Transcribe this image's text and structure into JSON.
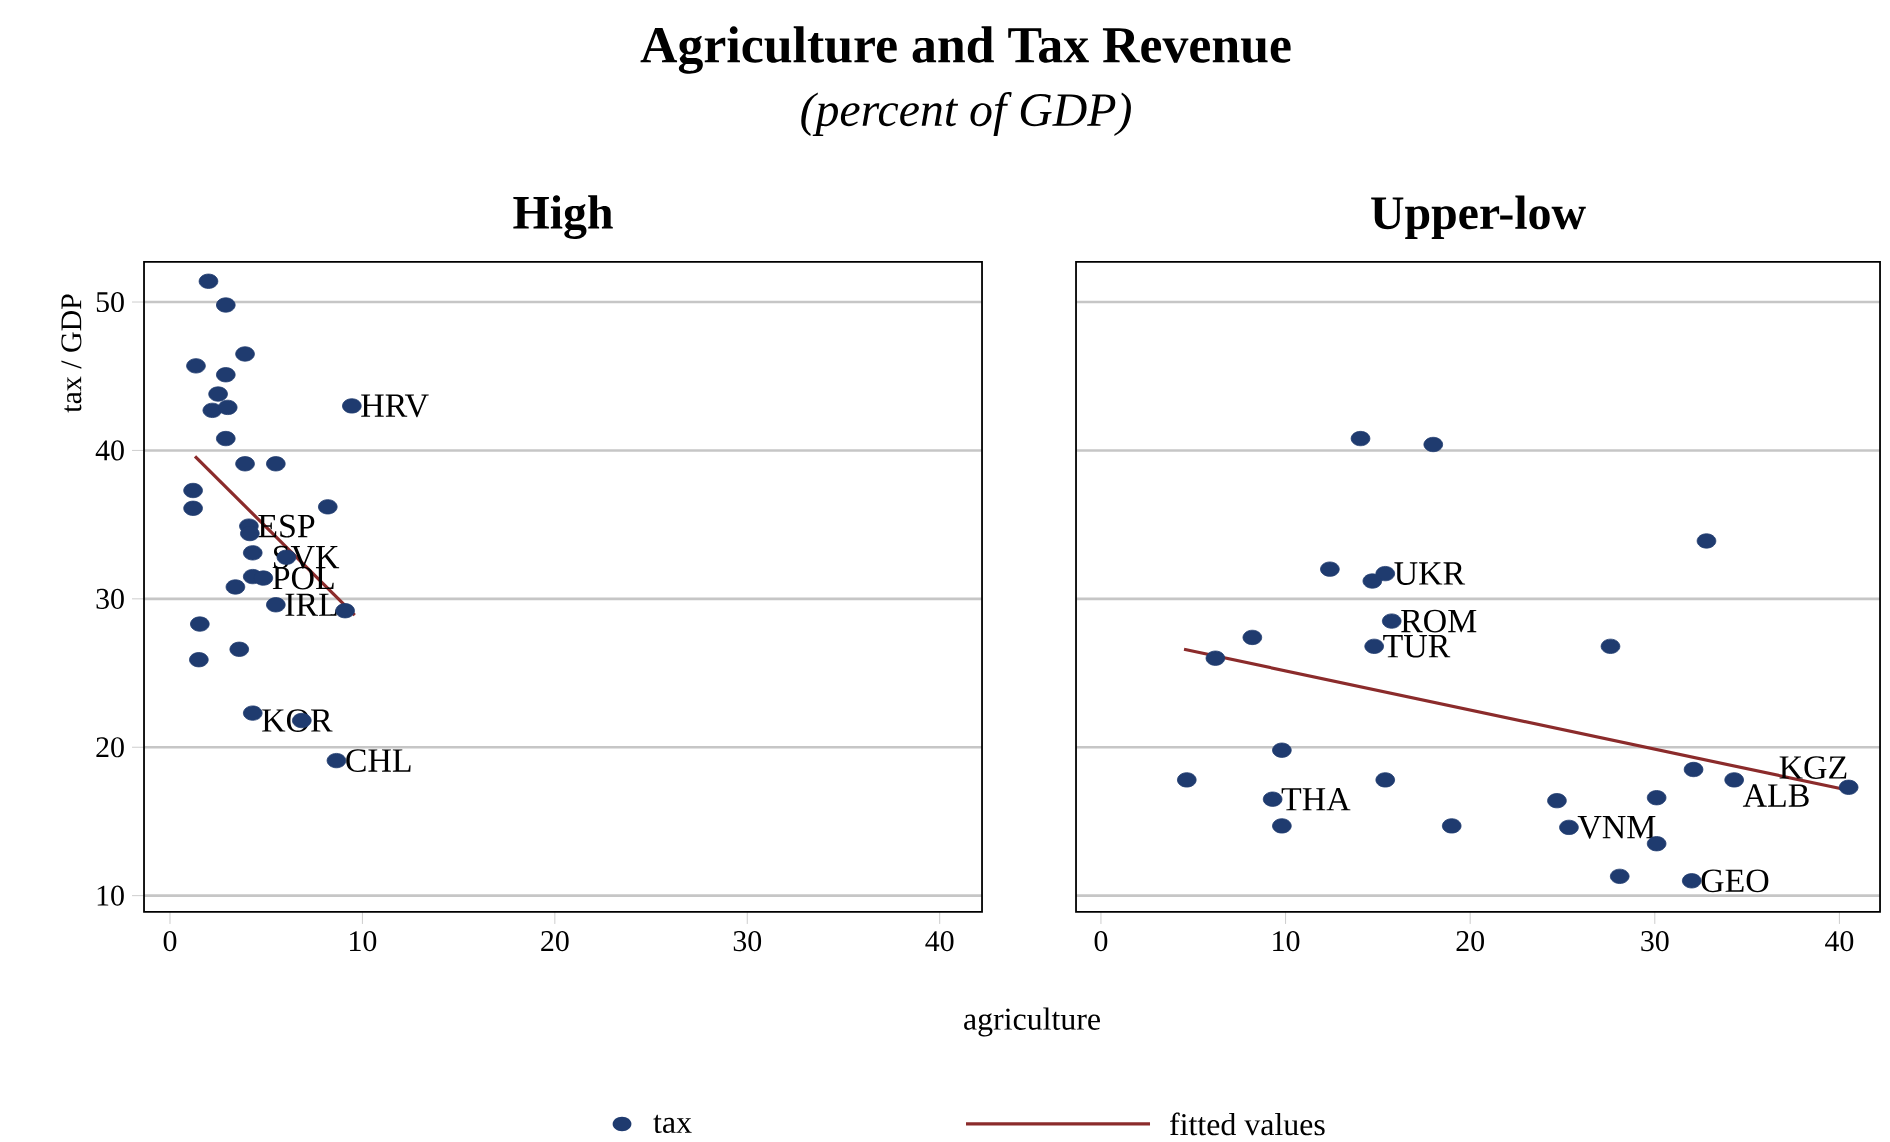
{
  "chart_data": [
    {
      "type": "other",
      "title": "Agriculture and Tax Revenue",
      "subtitle": "(percent of GDP)",
      "xlabel": "agriculture"
    },
    {
      "type": "scatter",
      "title": "High",
      "ylabel": "tax / GDP",
      "xlim": [
        -1.35,
        42.2
      ],
      "ylim": [
        8.9,
        52.7
      ],
      "xticks": [
        0,
        10,
        20,
        30,
        40
      ],
      "yticks": [
        10,
        20,
        30,
        40,
        50
      ],
      "grid": "y",
      "legend": "bottom",
      "series": [
        {
          "name": "tax",
          "type": "scatter",
          "marker": "circle",
          "color": "#1f3b6f",
          "x": [
            2.0,
            2.9,
            3.9,
            1.35,
            2.9,
            2.5,
            2.2,
            3.0,
            9.45,
            2.9,
            3.9,
            5.5,
            1.2,
            1.2,
            8.2,
            4.1,
            4.15,
            4.3,
            6.05,
            4.3,
            4.85,
            3.4,
            5.5,
            9.1,
            1.55,
            1.5,
            3.6,
            4.3,
            6.85,
            8.65
          ],
          "values": [
            51.4,
            49.8,
            46.5,
            45.7,
            45.1,
            43.8,
            42.7,
            42.9,
            43.0,
            40.8,
            39.1,
            39.1,
            37.3,
            36.1,
            36.2,
            34.9,
            34.4,
            33.1,
            32.8,
            31.5,
            31.4,
            30.8,
            29.6,
            29.2,
            28.3,
            25.9,
            26.6,
            22.3,
            21.8,
            19.1
          ]
        },
        {
          "name": "fitted values",
          "type": "line",
          "marker": "none",
          "line_style": "solid",
          "color": "#8b2b2b",
          "x": [
            1.3,
            9.6
          ],
          "values": [
            39.6,
            28.9
          ]
        }
      ],
      "annotations": [
        {
          "text": "HRV",
          "x": 9.45,
          "y": 43.0
        },
        {
          "text": "ESP",
          "x": 4.1,
          "y": 34.9
        },
        {
          "text": "SVK",
          "x": 4.85,
          "y": 32.8
        },
        {
          "text": "POL",
          "x": 4.85,
          "y": 31.4
        },
        {
          "text": "IRL",
          "x": 5.5,
          "y": 29.6
        },
        {
          "text": "KOR",
          "x": 4.3,
          "y": 21.8
        },
        {
          "text": "CHL",
          "x": 8.65,
          "y": 19.1
        }
      ]
    },
    {
      "type": "scatter",
      "title": "Upper-low",
      "xlim": [
        -1.35,
        42.2
      ],
      "ylim": [
        8.9,
        52.7
      ],
      "xticks": [
        0,
        10,
        20,
        30,
        40
      ],
      "yticks": [
        10,
        20,
        30,
        40,
        50
      ],
      "grid": "y",
      "tick_labels": "x",
      "series": [
        {
          "type": "scatter",
          "marker": "circle",
          "color": "#1f3b6f",
          "x": [
            14.06,
            18.0,
            32.8,
            12.4,
            15.4,
            14.7,
            15.75,
            8.2,
            14.8,
            27.6,
            6.2,
            9.8,
            4.65,
            15.4,
            9.3,
            9.8,
            19.0,
            24.7,
            25.35,
            30.1,
            30.1,
            32.1,
            34.3,
            28.1,
            32.0,
            40.5
          ],
          "values": [
            40.8,
            40.4,
            33.9,
            32.0,
            31.7,
            31.2,
            28.5,
            27.4,
            26.8,
            26.8,
            26.0,
            19.8,
            17.8,
            17.8,
            16.5,
            14.7,
            14.7,
            16.4,
            14.6,
            16.6,
            13.5,
            18.5,
            17.8,
            11.3,
            11.0,
            17.3
          ]
        },
        {
          "type": "line",
          "marker": "none",
          "line_style": "solid",
          "color": "#8b2b2b",
          "x": [
            4.5,
            40.5
          ],
          "values": [
            26.6,
            17.1
          ]
        }
      ],
      "annotations": [
        {
          "text": "UKR",
          "x": 15.4,
          "y": 31.7
        },
        {
          "text": "ROM",
          "x": 15.75,
          "y": 28.5
        },
        {
          "text": "TUR",
          "x": 14.8,
          "y": 26.8
        },
        {
          "text": "THA",
          "x": 9.3,
          "y": 16.5
        },
        {
          "text": "VNM",
          "x": 25.35,
          "y": 14.6
        },
        {
          "text": "ALB",
          "x": 34.3,
          "y": 17.8
        },
        {
          "text": "GEO",
          "x": 32.0,
          "y": 11.0
        },
        {
          "text": "KGZ",
          "x": 40.5,
          "y": 17.3
        }
      ]
    }
  ]
}
